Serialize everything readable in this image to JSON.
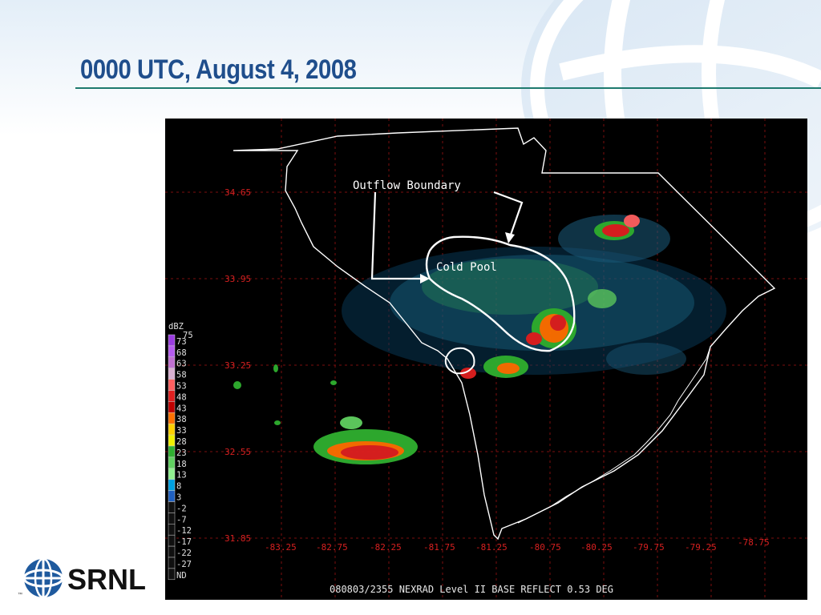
{
  "slide": {
    "title": "0000 UTC, August 4, 2008"
  },
  "radar": {
    "caption": "080803/2355 NEXRAD Level II BASE  REFLECT 0.53 DEG",
    "lat_labels": [
      "34.65",
      "33.95",
      "33.25",
      "32.55",
      "31.85"
    ],
    "lon_labels": [
      "-83.25",
      "-82.75",
      "-82.25",
      "-81.75",
      "-81.25",
      "-80.75",
      "-80.25",
      "-79.75",
      "-79.25",
      "-78.75"
    ],
    "annotations": {
      "outflow": "Outflow Boundary",
      "cold_pool": "Cold Pool"
    },
    "legend": {
      "unit": "dBZ",
      "top_value": "75",
      "entries": [
        "73",
        "68",
        "63",
        "58",
        "53",
        "48",
        "43",
        "38",
        "33",
        "28",
        "23",
        "18",
        "13",
        "8",
        "3",
        "-2",
        "-7",
        "-12",
        "-17",
        "-22",
        "-27",
        "ND"
      ],
      "colors": [
        "#9a3ce0",
        "#b65cf0",
        "#c070d0",
        "#d8b0d0",
        "#ff6060",
        "#e02020",
        "#c00000",
        "#ff7000",
        "#ffd000",
        "#f0f000",
        "#30b030",
        "#60d060",
        "#90f090",
        "#00a0e0",
        "#2060c0",
        "#101010",
        "#101010",
        "#101010",
        "#101010",
        "#101010",
        "#101010",
        "#101010"
      ]
    }
  },
  "logo": {
    "text": "SRNL",
    "tm": "™"
  }
}
